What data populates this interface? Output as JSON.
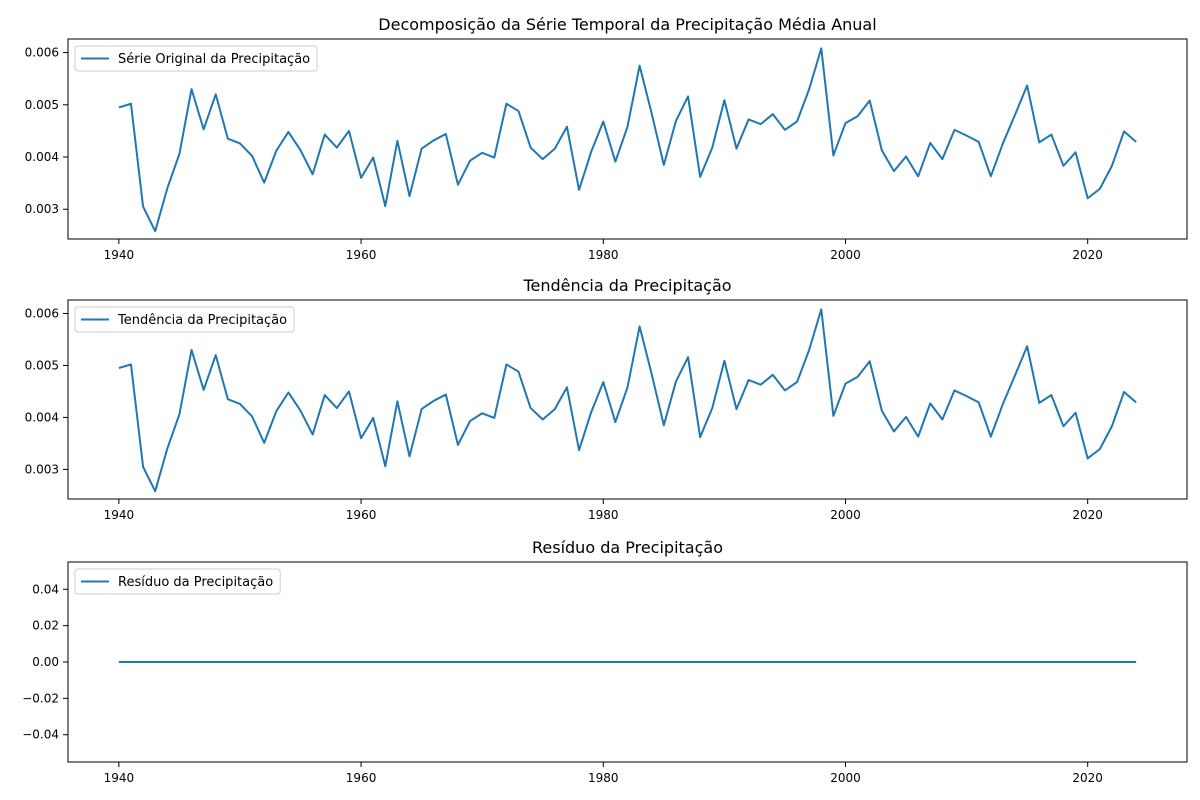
{
  "chart_data": [
    {
      "type": "line",
      "title": "Decomposição da Série Temporal da Precipitação Média Anual",
      "xlabel": "",
      "ylabel": "",
      "xlim": [
        1935.8,
        2028.2
      ],
      "ylim": [
        0.00243,
        0.00626
      ],
      "xticks": [
        1940,
        1960,
        1980,
        2000,
        2020
      ],
      "xtick_labels": [
        "1940",
        "1960",
        "1980",
        "2000",
        "2020"
      ],
      "yticks": [
        0.003,
        0.004,
        0.005,
        0.006
      ],
      "ytick_labels": [
        "0.003",
        "0.004",
        "0.005",
        "0.006"
      ],
      "grid": false,
      "legend_position": "upper-left",
      "series": [
        {
          "name": "Série Original da Precipitação",
          "color": "#1f77b4",
          "x": [
            1940,
            1941,
            1942,
            1943,
            1944,
            1945,
            1946,
            1947,
            1948,
            1949,
            1950,
            1951,
            1952,
            1953,
            1954,
            1955,
            1956,
            1957,
            1958,
            1959,
            1960,
            1961,
            1962,
            1963,
            1964,
            1965,
            1966,
            1967,
            1968,
            1969,
            1970,
            1971,
            1972,
            1973,
            1974,
            1975,
            1976,
            1977,
            1978,
            1979,
            1980,
            1981,
            1982,
            1983,
            1984,
            1985,
            1986,
            1987,
            1988,
            1989,
            1990,
            1991,
            1992,
            1993,
            1994,
            1995,
            1996,
            1997,
            1998,
            1999,
            2000,
            2001,
            2002,
            2003,
            2004,
            2005,
            2006,
            2007,
            2008,
            2009,
            2010,
            2011,
            2012,
            2013,
            2014,
            2015,
            2016,
            2017,
            2018,
            2019,
            2020,
            2021,
            2022,
            2023,
            2024
          ],
          "values": [
            0.00495,
            0.00502,
            0.00305,
            0.00258,
            0.0034,
            0.00406,
            0.0053,
            0.00453,
            0.0052,
            0.00435,
            0.00426,
            0.00402,
            0.00351,
            0.00412,
            0.00448,
            0.00413,
            0.00367,
            0.00443,
            0.00418,
            0.0045,
            0.0036,
            0.00399,
            0.00306,
            0.00431,
            0.00325,
            0.00416,
            0.00432,
            0.00444,
            0.00347,
            0.00393,
            0.00408,
            0.00399,
            0.00502,
            0.00488,
            0.00418,
            0.00396,
            0.00416,
            0.00458,
            0.00337,
            0.0041,
            0.00468,
            0.00391,
            0.00458,
            0.00575,
            0.00483,
            0.00385,
            0.00469,
            0.00516,
            0.00362,
            0.00418,
            0.00509,
            0.00416,
            0.00472,
            0.00463,
            0.00482,
            0.00452,
            0.00468,
            0.0053,
            0.00608,
            0.00403,
            0.00465,
            0.00478,
            0.00508,
            0.00413,
            0.00373,
            0.00401,
            0.00363,
            0.00427,
            0.00396,
            0.00452,
            0.00441,
            0.00429,
            0.00363,
            0.00426,
            0.00481,
            0.00537,
            0.00428,
            0.00443,
            0.00383,
            0.00409,
            0.00321,
            0.00339,
            0.00383,
            0.00449,
            0.00429
          ]
        }
      ]
    },
    {
      "type": "line",
      "title": "Tendência da Precipitação",
      "xlabel": "",
      "ylabel": "",
      "xlim": [
        1935.8,
        2028.2
      ],
      "ylim": [
        0.00243,
        0.00626
      ],
      "xticks": [
        1940,
        1960,
        1980,
        2000,
        2020
      ],
      "xtick_labels": [
        "1940",
        "1960",
        "1980",
        "2000",
        "2020"
      ],
      "yticks": [
        0.003,
        0.004,
        0.005,
        0.006
      ],
      "ytick_labels": [
        "0.003",
        "0.004",
        "0.005",
        "0.006"
      ],
      "grid": false,
      "legend_position": "upper-left",
      "series": [
        {
          "name": "Tendência da Precipitação",
          "color": "#1f77b4",
          "x": [
            1940,
            1941,
            1942,
            1943,
            1944,
            1945,
            1946,
            1947,
            1948,
            1949,
            1950,
            1951,
            1952,
            1953,
            1954,
            1955,
            1956,
            1957,
            1958,
            1959,
            1960,
            1961,
            1962,
            1963,
            1964,
            1965,
            1966,
            1967,
            1968,
            1969,
            1970,
            1971,
            1972,
            1973,
            1974,
            1975,
            1976,
            1977,
            1978,
            1979,
            1980,
            1981,
            1982,
            1983,
            1984,
            1985,
            1986,
            1987,
            1988,
            1989,
            1990,
            1991,
            1992,
            1993,
            1994,
            1995,
            1996,
            1997,
            1998,
            1999,
            2000,
            2001,
            2002,
            2003,
            2004,
            2005,
            2006,
            2007,
            2008,
            2009,
            2010,
            2011,
            2012,
            2013,
            2014,
            2015,
            2016,
            2017,
            2018,
            2019,
            2020,
            2021,
            2022,
            2023,
            2024
          ],
          "values": [
            0.00495,
            0.00502,
            0.00305,
            0.00258,
            0.0034,
            0.00406,
            0.0053,
            0.00453,
            0.0052,
            0.00435,
            0.00426,
            0.00402,
            0.00351,
            0.00412,
            0.00448,
            0.00413,
            0.00367,
            0.00443,
            0.00418,
            0.0045,
            0.0036,
            0.00399,
            0.00306,
            0.00431,
            0.00325,
            0.00416,
            0.00432,
            0.00444,
            0.00347,
            0.00393,
            0.00408,
            0.00399,
            0.00502,
            0.00488,
            0.00418,
            0.00396,
            0.00416,
            0.00458,
            0.00337,
            0.0041,
            0.00468,
            0.00391,
            0.00458,
            0.00575,
            0.00483,
            0.00385,
            0.00469,
            0.00516,
            0.00362,
            0.00418,
            0.00509,
            0.00416,
            0.00472,
            0.00463,
            0.00482,
            0.00452,
            0.00468,
            0.0053,
            0.00608,
            0.00403,
            0.00465,
            0.00478,
            0.00508,
            0.00413,
            0.00373,
            0.00401,
            0.00363,
            0.00427,
            0.00396,
            0.00452,
            0.00441,
            0.00429,
            0.00363,
            0.00426,
            0.00481,
            0.00537,
            0.00428,
            0.00443,
            0.00383,
            0.00409,
            0.00321,
            0.00339,
            0.00383,
            0.00449,
            0.00429
          ]
        }
      ]
    },
    {
      "type": "line",
      "title": "Resíduo da Precipitação",
      "xlabel": "",
      "ylabel": "",
      "xlim": [
        1935.8,
        2028.2
      ],
      "ylim": [
        -0.055,
        0.055
      ],
      "xticks": [
        1940,
        1960,
        1980,
        2000,
        2020
      ],
      "xtick_labels": [
        "1940",
        "1960",
        "1980",
        "2000",
        "2020"
      ],
      "yticks": [
        -0.04,
        -0.02,
        0.0,
        0.02,
        0.04
      ],
      "ytick_labels": [
        "−0.04",
        "−0.02",
        "0.00",
        "0.02",
        "0.04"
      ],
      "grid": false,
      "legend_position": "upper-left",
      "series": [
        {
          "name": "Resíduo da Precipitação",
          "color": "#1f77b4",
          "x": [
            1940,
            2024
          ],
          "values": [
            0.0,
            0.0
          ]
        }
      ]
    }
  ]
}
